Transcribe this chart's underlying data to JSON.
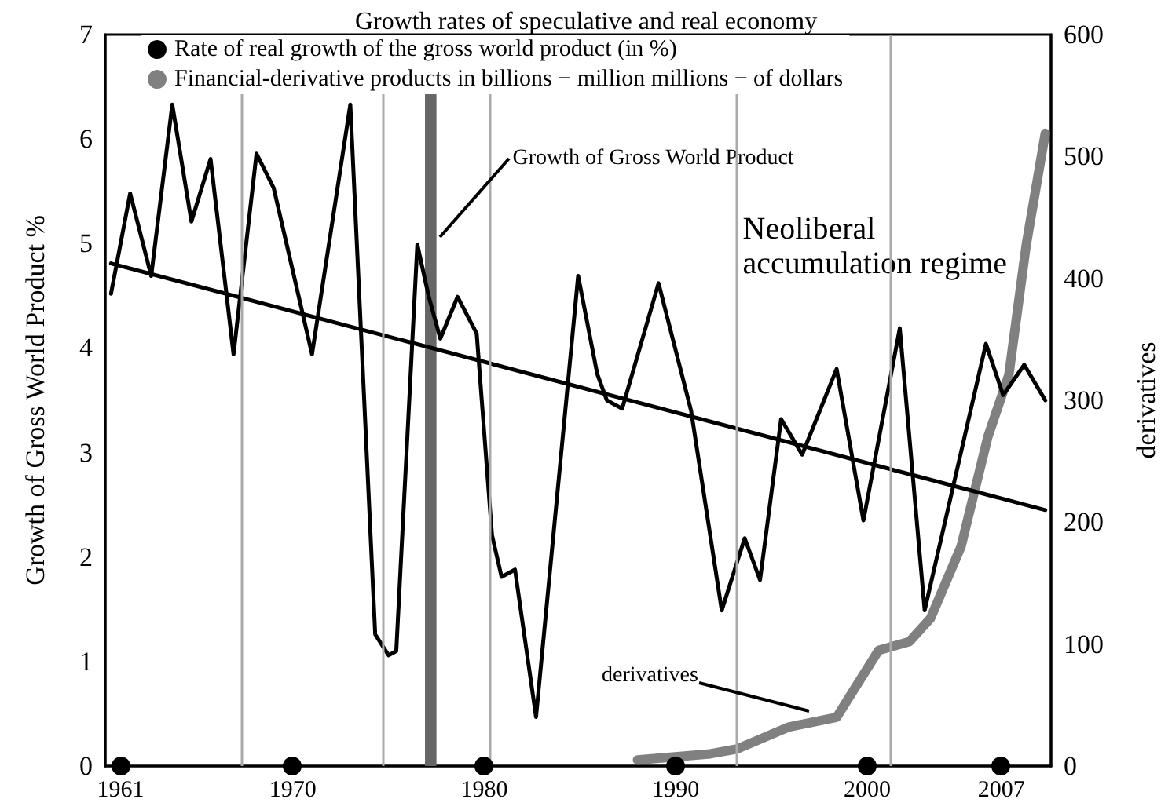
{
  "chart_data": {
    "type": "line",
    "title": "Growth rates of speculative and real economy",
    "ylabel": "Growth of Gross World Product %",
    "y2label": "derivatives",
    "xlim": [
      1960.2,
      2009.6
    ],
    "xticks": [
      1961,
      1970,
      1980,
      1990,
      2000,
      2007
    ],
    "ylim": [
      0,
      7
    ],
    "yticks": [
      0,
      1,
      2,
      3,
      4,
      5,
      6,
      7
    ],
    "y2lim": [
      0,
      600
    ],
    "y2ticks": [
      0,
      100,
      200,
      300,
      400,
      500,
      600
    ],
    "legend": "top left",
    "grid": false,
    "marker": "none",
    "line_style": "solid",
    "series": [
      {
        "name": "Rate of real growth of the gross world product (in %)",
        "color": "#000000",
        "x": [
          1960.5,
          1961.5,
          1962.6,
          1963.7,
          1964.7,
          1965.7,
          1966.9,
          1968.1,
          1969.0,
          1971.0,
          1973.0,
          1974.3,
          1975.0,
          1975.4,
          1976.5,
          1977.1,
          1977.7,
          1978.6,
          1979.6,
          1980.4,
          1980.9,
          1981.6,
          1982.7,
          1984.9,
          1985.9,
          1986.4,
          1987.2,
          1989.1,
          1990.8,
          1992.4,
          1993.6,
          1994.4,
          1995.5,
          1996.6,
          1998.4,
          1999.8,
          2001.7,
          2003.0,
          2006.2,
          2007.1,
          2008.2,
          2009.3
        ],
        "values": [
          4.52,
          5.48,
          4.69,
          6.33,
          5.21,
          5.81,
          3.94,
          5.86,
          5.53,
          3.94,
          6.33,
          1.26,
          1.06,
          1.1,
          4.99,
          4.49,
          4.09,
          4.49,
          4.14,
          2.21,
          1.81,
          1.88,
          0.47,
          4.69,
          3.75,
          3.5,
          3.42,
          4.62,
          3.4,
          1.49,
          2.18,
          1.78,
          3.32,
          2.98,
          3.8,
          2.35,
          4.19,
          1.49,
          4.04,
          3.55,
          3.84,
          3.5
        ]
      },
      {
        "type": "line",
        "color": "#000000",
        "x": [
          1960.5,
          2009.3
        ],
        "values": [
          4.81,
          2.45
        ]
      },
      {
        "name": "Financial-derivative products in billions − million millions − of dollars",
        "color": "#808080",
        "axis": "y2",
        "x": [
          1988.0,
          1991.8,
          1993.2,
          1995.9,
          1998.4,
          2000.6,
          2002.2,
          2003.3,
          2004.9,
          2006.3,
          2007.4,
          2008.3,
          2009.3
        ],
        "values": [
          5,
          10,
          14,
          32,
          40,
          95,
          102,
          121,
          180,
          270,
          321,
          427,
          519
        ]
      }
    ],
    "ref_lines": [
      {
        "axis": "x",
        "value": 1967.3,
        "color": "#aaaaaa"
      },
      {
        "axis": "x",
        "value": 1974.7,
        "color": "#aaaaaa"
      },
      {
        "axis": "x",
        "value": 1980.3,
        "color": "#aaaaaa"
      },
      {
        "axis": "x",
        "value": 1993.2,
        "color": "#aaaaaa"
      },
      {
        "axis": "x",
        "value": 2001.2,
        "color": "#aaaaaa"
      }
    ],
    "bands": [
      {
        "axis": "x",
        "from": 1976.9,
        "to": 1977.5,
        "color": "#666666"
      }
    ],
    "annotations": [
      {
        "text": "Growth of Gross World Product",
        "x": 1977.7,
        "y": 5.06
      },
      {
        "text": "derivatives",
        "x": 1997.0,
        "y": 0.52
      },
      {
        "text": "Neoliberal\naccumulation regime",
        "x": 1993.5,
        "y": 5.3
      }
    ]
  }
}
